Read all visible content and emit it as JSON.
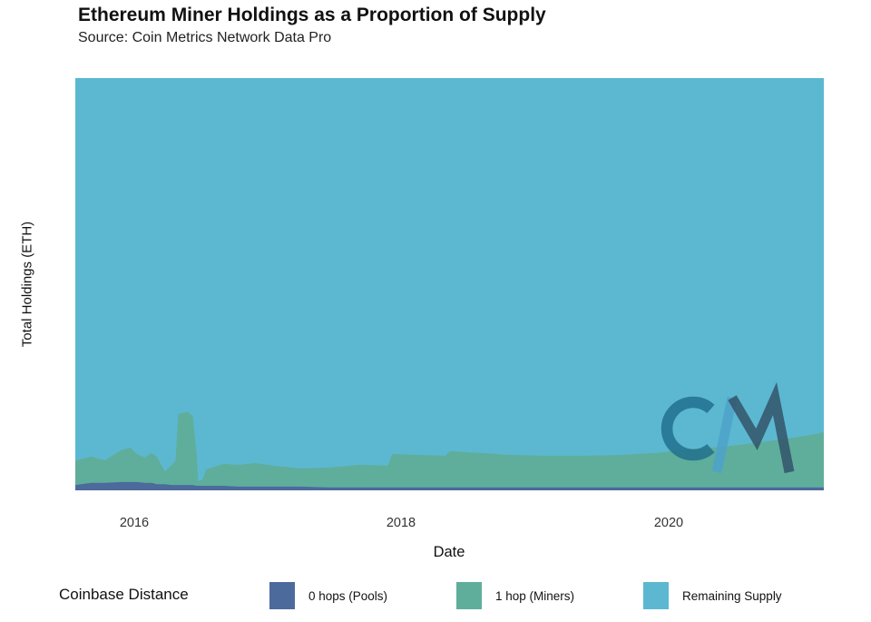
{
  "title": "Ethereum Miner Holdings as a Proportion of Supply",
  "subtitle": "Source: Coin Metrics Network Data Pro",
  "watermark": "coinmetrics-logo",
  "axes": {
    "x_label": "Date",
    "y_label": "Total Holdings (ETH)",
    "x_ticks": [
      "2016",
      "2018",
      "2020"
    ]
  },
  "legend": {
    "title": "Coinbase Distance",
    "items": [
      {
        "label": "0 hops (Pools)",
        "color": "#4c6a9c"
      },
      {
        "label": "1 hop (Miners)",
        "color": "#5fae9c"
      },
      {
        "label": "Remaining Supply",
        "color": "#5cb8d1"
      }
    ]
  },
  "chart_data": {
    "type": "area",
    "stacked": true,
    "title": "Ethereum Miner Holdings as a Proportion of Supply",
    "subtitle": "Source: Coin Metrics Network Data Pro",
    "xlabel": "Date",
    "ylabel": "Total Holdings (ETH)",
    "x_range_years": [
      2015.56,
      2021.16
    ],
    "x_ticks_years": [
      2016,
      2018,
      2020
    ],
    "y_tick_labels": [],
    "y_tick_labels_visible": false,
    "y_units": "fraction of total supply (axis unlabeled in figure)",
    "legend_position": "bottom",
    "grid": false,
    "x": [
      2015.56,
      2015.68,
      2015.78,
      2015.9,
      2015.97,
      2016.02,
      2016.08,
      2016.13,
      2016.17,
      2016.23,
      2016.28,
      2016.31,
      2016.33,
      2016.4,
      2016.44,
      2016.47,
      2016.48,
      2016.51,
      2016.54,
      2016.6,
      2016.67,
      2016.78,
      2016.91,
      2017.04,
      2017.25,
      2017.45,
      2017.69,
      2017.9,
      2017.93,
      2018.14,
      2018.33,
      2018.36,
      2018.58,
      2018.82,
      2019.09,
      2019.37,
      2019.64,
      2019.91,
      2020.15,
      2020.42,
      2020.69,
      2020.9,
      2021.07,
      2021.16
    ],
    "series": [
      {
        "name": "0 hops (Pools)",
        "color": "#4c6a9c",
        "values": [
          0.013,
          0.018,
          0.018,
          0.02,
          0.02,
          0.02,
          0.018,
          0.018,
          0.015,
          0.015,
          0.013,
          0.013,
          0.013,
          0.013,
          0.013,
          0.011,
          0.011,
          0.011,
          0.011,
          0.011,
          0.011,
          0.009,
          0.009,
          0.009,
          0.009,
          0.007,
          0.007,
          0.007,
          0.007,
          0.007,
          0.007,
          0.007,
          0.007,
          0.007,
          0.007,
          0.007,
          0.007,
          0.007,
          0.007,
          0.007,
          0.007,
          0.007,
          0.007,
          0.007
        ]
      },
      {
        "name": "1 hop (Miners)",
        "color": "#5fae9c",
        "values": [
          0.059,
          0.064,
          0.055,
          0.077,
          0.084,
          0.068,
          0.062,
          0.073,
          0.066,
          0.031,
          0.048,
          0.059,
          0.172,
          0.178,
          0.167,
          0.066,
          0.011,
          0.015,
          0.04,
          0.046,
          0.053,
          0.053,
          0.057,
          0.051,
          0.044,
          0.048,
          0.055,
          0.053,
          0.081,
          0.079,
          0.077,
          0.088,
          0.084,
          0.079,
          0.077,
          0.077,
          0.079,
          0.084,
          0.093,
          0.099,
          0.11,
          0.119,
          0.128,
          0.134
        ]
      },
      {
        "name": "Remaining Supply",
        "color": "#5cb8d1",
        "values": [
          0.928,
          0.918,
          0.927,
          0.903,
          0.896,
          0.912,
          0.92,
          0.909,
          0.919,
          0.954,
          0.939,
          0.928,
          0.815,
          0.809,
          0.82,
          0.923,
          0.978,
          0.974,
          0.949,
          0.943,
          0.936,
          0.938,
          0.934,
          0.94,
          0.947,
          0.945,
          0.938,
          0.94,
          0.912,
          0.914,
          0.916,
          0.905,
          0.909,
          0.914,
          0.916,
          0.916,
          0.914,
          0.909,
          0.9,
          0.894,
          0.883,
          0.874,
          0.865,
          0.859
        ]
      }
    ]
  }
}
